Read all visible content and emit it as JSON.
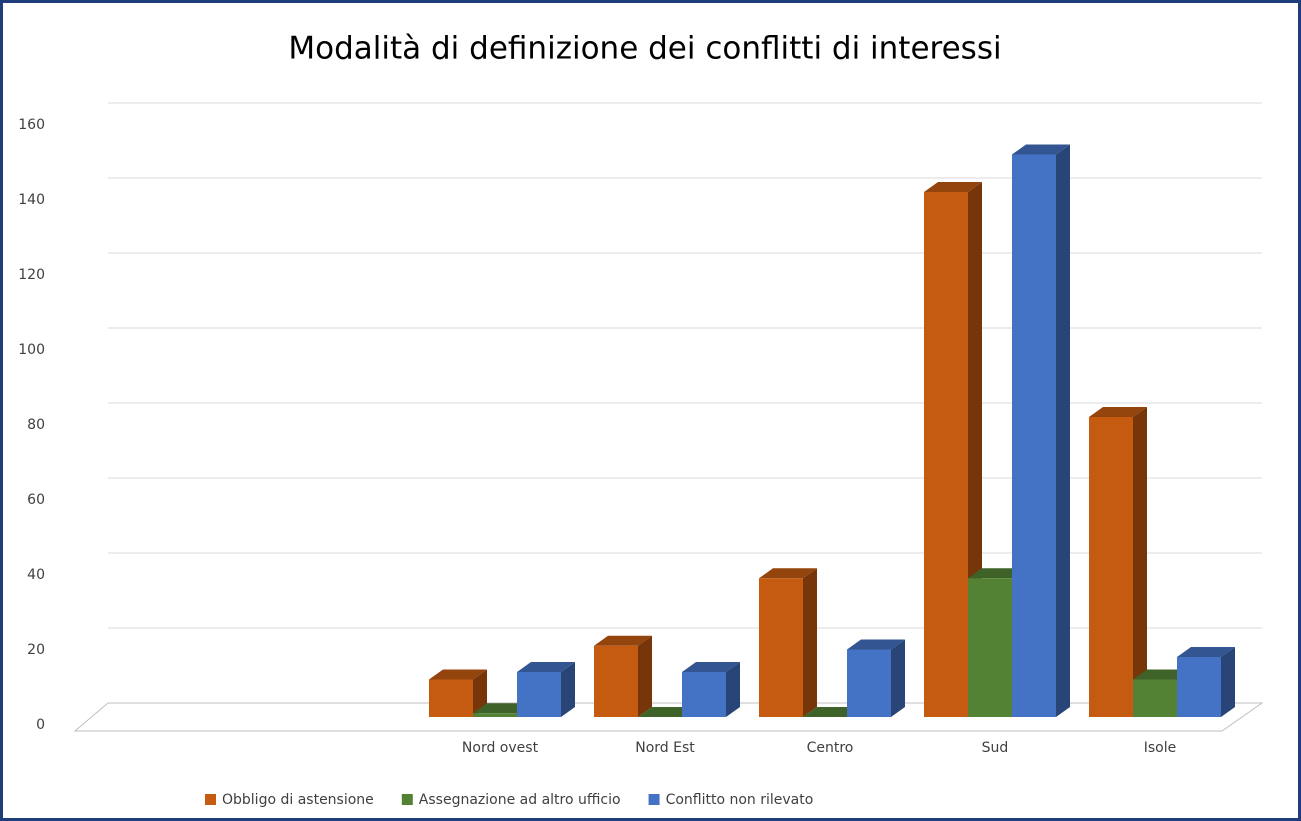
{
  "chart_data": {
    "type": "bar3d",
    "title": "Modalità di definizione dei conflitti di interessi",
    "categories": [
      null,
      null,
      "Nord ovest",
      "Nord Est",
      "Centro",
      "Sud",
      "Isole"
    ],
    "series": [
      {
        "name": "Obbligo di astensione",
        "color": "#c55a11",
        "values": [
          null,
          null,
          10,
          19,
          37,
          140,
          80
        ]
      },
      {
        "name": "Assegnazione ad altro ufficio",
        "color": "#548235",
        "values": [
          null,
          null,
          1,
          0,
          0,
          37,
          10
        ]
      },
      {
        "name": "Conflitto non rilevato",
        "color": "#4472c4",
        "values": [
          null,
          null,
          12,
          12,
          18,
          150,
          16
        ]
      }
    ],
    "ylim": [
      0,
      160
    ],
    "yticks": [
      0,
      20,
      40,
      60,
      80,
      100,
      120,
      140,
      160
    ],
    "grid": true,
    "legend": "bottom"
  }
}
